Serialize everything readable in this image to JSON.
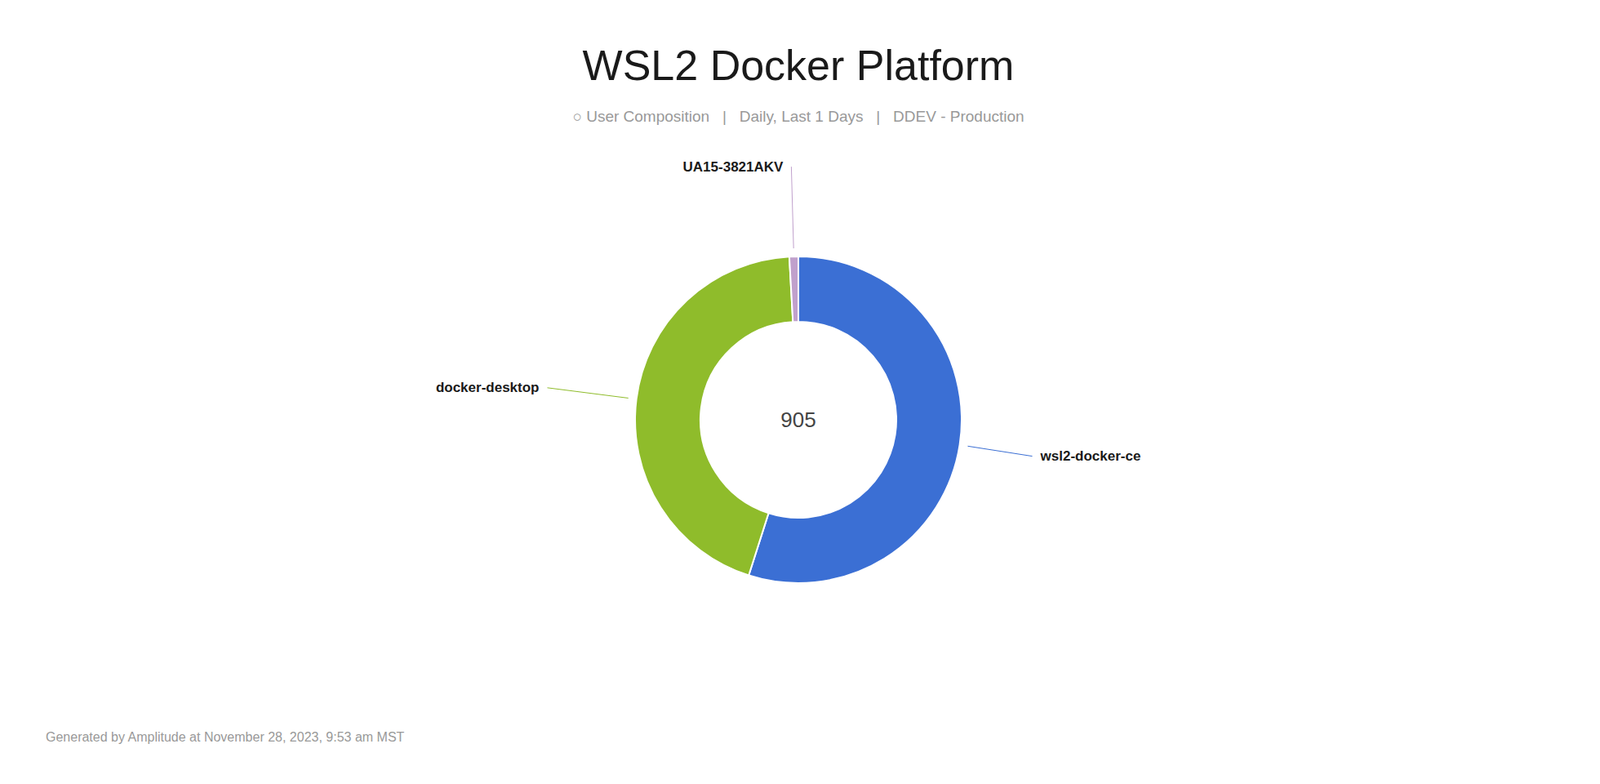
{
  "chart_data": {
    "type": "donut",
    "title": "WSL2 Docker Platform",
    "subtitle": "○ User Composition   |   Daily, Last 1 Days   |   DDEV - Production",
    "annotations": [
      "905",
      "Generated by Amplitude at November 28, 2023, 9:53 am MST"
    ],
    "categories": [
      "wsl2-docker-ce",
      "docker-desktop",
      "UA15-3821AKV"
    ],
    "values": [
      497,
      400,
      8
    ],
    "colors": [
      "#3B6FD4",
      "#8FBC2B",
      "#C0A0CC"
    ]
  }
}
